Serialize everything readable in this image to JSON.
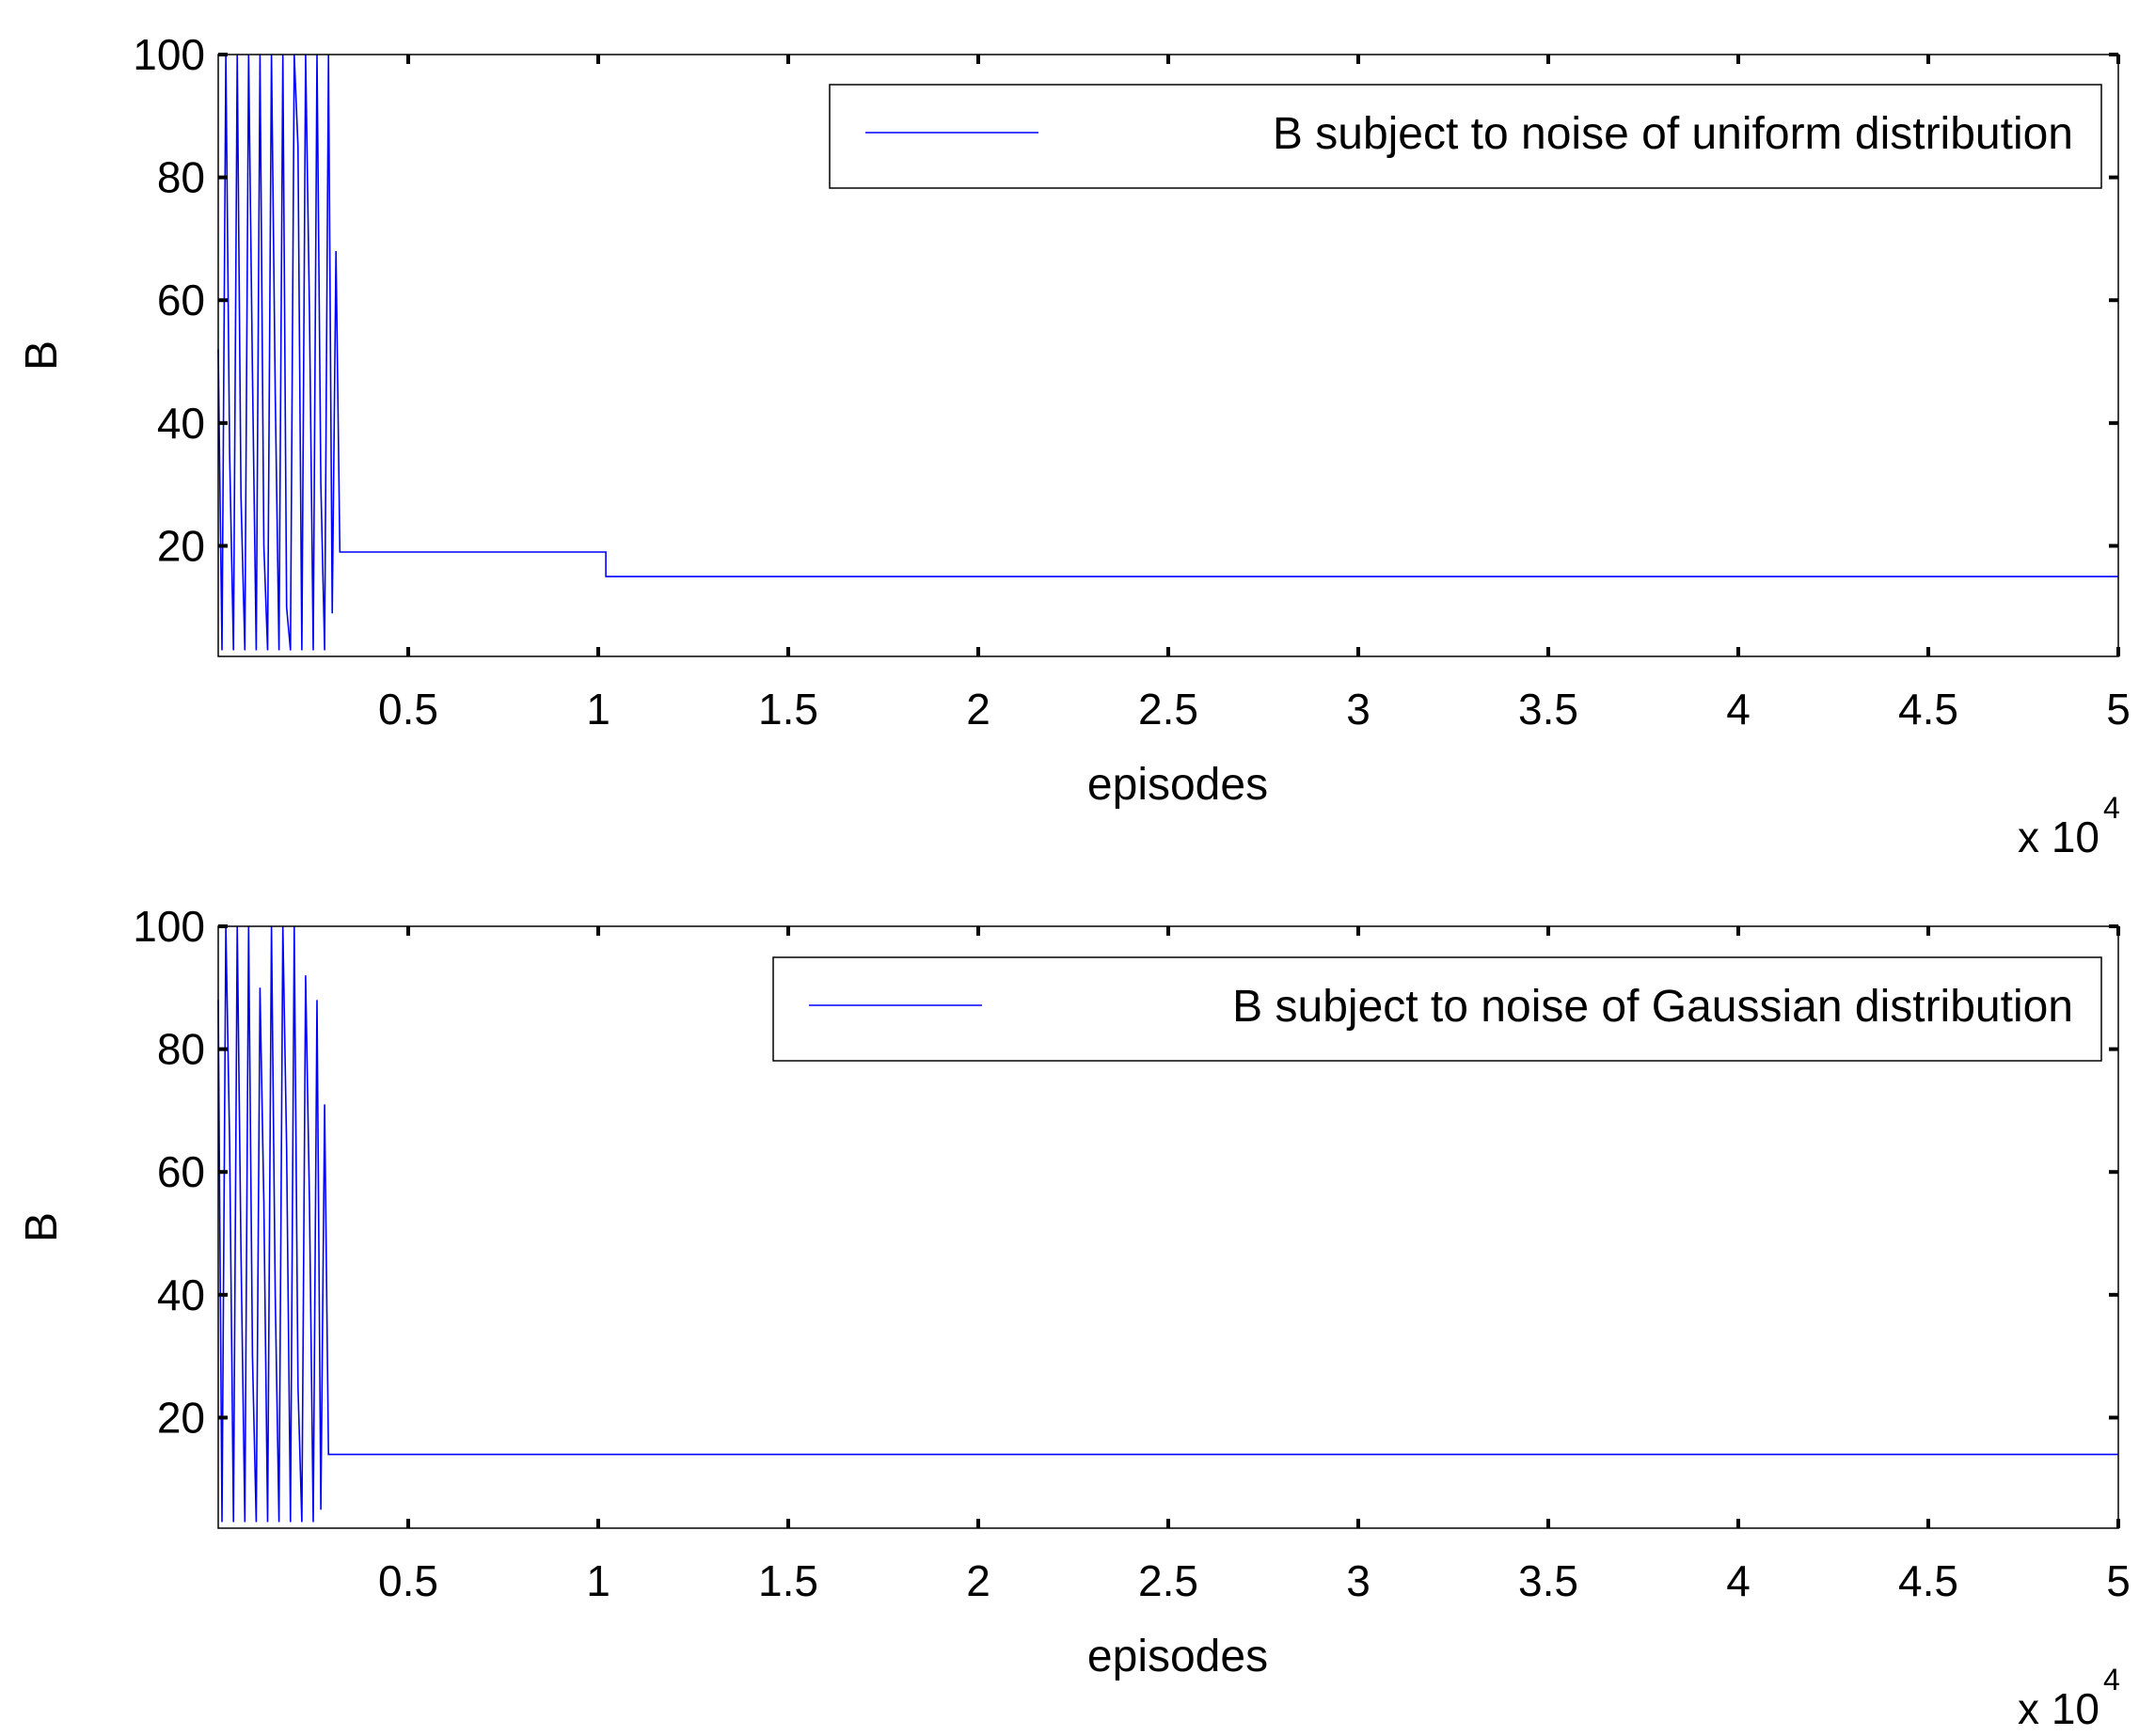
{
  "chart_data": [
    {
      "type": "line",
      "xlabel": "episodes",
      "ylabel": "B",
      "x_scale_note": "x 10",
      "x_scale_exponent": "4",
      "xlim": [
        0,
        50000
      ],
      "ylim": [
        2,
        100
      ],
      "x_ticks": [
        5000,
        10000,
        15000,
        20000,
        25000,
        30000,
        35000,
        40000,
        45000,
        50000
      ],
      "x_tick_labels": [
        "0.5",
        "1",
        "1.5",
        "2",
        "2.5",
        "3",
        "3.5",
        "4",
        "4.5",
        "5"
      ],
      "y_ticks": [
        20,
        40,
        60,
        80,
        100
      ],
      "y_tick_labels": [
        "20",
        "40",
        "60",
        "80",
        "100"
      ],
      "legend_position": "top-right",
      "series": [
        {
          "name": "B subject to noise of uniform distribution",
          "color": "#0000ff",
          "x": [
            0,
            100,
            200,
            300,
            400,
            500,
            600,
            700,
            800,
            900,
            1000,
            1100,
            1200,
            1300,
            1400,
            1500,
            1600,
            1700,
            1800,
            1900,
            2000,
            2100,
            2200,
            2300,
            2400,
            2500,
            2600,
            2700,
            2800,
            2900,
            3000,
            3100,
            3200,
            10200,
            10200,
            50000
          ],
          "y": [
            52,
            3,
            100,
            35,
            3,
            100,
            28,
            3,
            100,
            48,
            3,
            100,
            20,
            3,
            100,
            45,
            3,
            100,
            10,
            3,
            100,
            85,
            3,
            100,
            58,
            3,
            100,
            30,
            3,
            100,
            9,
            68,
            19,
            19,
            15,
            15
          ]
        }
      ]
    },
    {
      "type": "line",
      "xlabel": "episodes",
      "ylabel": "B",
      "x_scale_note": "x 10",
      "x_scale_exponent": "4",
      "xlim": [
        0,
        50000
      ],
      "ylim": [
        2,
        100
      ],
      "x_ticks": [
        5000,
        10000,
        15000,
        20000,
        25000,
        30000,
        35000,
        40000,
        45000,
        50000
      ],
      "x_tick_labels": [
        "0.5",
        "1",
        "1.5",
        "2",
        "2.5",
        "3",
        "3.5",
        "4",
        "4.5",
        "5"
      ],
      "y_ticks": [
        20,
        40,
        60,
        80,
        100
      ],
      "y_tick_labels": [
        "20",
        "40",
        "60",
        "80",
        "100"
      ],
      "legend_position": "top-right",
      "series": [
        {
          "name": "B subject to noise of Gaussian distribution",
          "color": "#0000ff",
          "x": [
            0,
            100,
            200,
            300,
            400,
            500,
            600,
            700,
            800,
            900,
            1000,
            1100,
            1200,
            1300,
            1400,
            1500,
            1600,
            1700,
            1800,
            1900,
            2000,
            2100,
            2200,
            2300,
            2400,
            2500,
            2600,
            2700,
            2800,
            2900,
            3000,
            50000
          ],
          "y": [
            88,
            3,
            100,
            65,
            3,
            100,
            47,
            3,
            100,
            30,
            3,
            90,
            55,
            3,
            100,
            40,
            3,
            100,
            64,
            3,
            100,
            25,
            3,
            92,
            55,
            3,
            88,
            5,
            71,
            14,
            14,
            14
          ]
        }
      ]
    }
  ]
}
